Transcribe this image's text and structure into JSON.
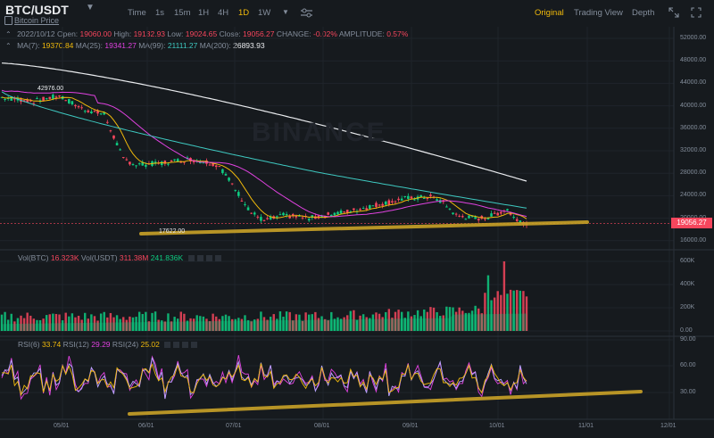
{
  "header": {
    "symbol": "BTC/USDT",
    "subtitle": "Bitcoin Price",
    "intervals": [
      "Time",
      "1s",
      "15m",
      "1H",
      "4H",
      "1D",
      "1W"
    ],
    "active_interval": "1D",
    "views": [
      "Original",
      "Trading View",
      "Depth"
    ],
    "active_view": "Original"
  },
  "ohlc": {
    "date": "2022/10/12",
    "open_label": "Open:",
    "open": "19060.00",
    "high_label": "High:",
    "high": "19132.93",
    "low_label": "Low:",
    "low": "19024.65",
    "close_label": "Close:",
    "close": "19056.27",
    "change_label": "CHANGE:",
    "change": "-0.02%",
    "amplitude_label": "AMPLITUDE:",
    "amplitude": "0.57%"
  },
  "ma": {
    "ma7_label": "MA(7):",
    "ma7": "19370.84",
    "ma25_label": "MA(25):",
    "ma25": "19341.27",
    "ma99_label": "MA(99):",
    "ma99": "21111.27",
    "ma200_label": "MA(200):",
    "ma200": "26893.93"
  },
  "volume": {
    "btc_label": "Vol(BTC)",
    "btc": "16.323K",
    "usdt_label": "Vol(USDT)",
    "usdt": "311.38M",
    "usdt_ma": "241.836K"
  },
  "rsi": {
    "r6_label": "RSI(6)",
    "r6": "33.74",
    "r12_label": "RSI(12)",
    "r12": "29.29",
    "r24_label": "RSI(24)",
    "r24": "25.02"
  },
  "price_axis": [
    "52000.00",
    "48000.00",
    "44000.00",
    "40000.00",
    "36000.00",
    "32000.00",
    "28000.00",
    "24000.00",
    "20000.00",
    "16000.00"
  ],
  "current_price": "19056.27",
  "vol_axis": [
    "600K",
    "400K",
    "200K",
    "0.00"
  ],
  "rsi_axis": [
    "90.00",
    "60.00",
    "30.00"
  ],
  "time_axis": [
    "05/01",
    "06/01",
    "07/01",
    "08/01",
    "09/01",
    "10/01",
    "11/01",
    "12/01"
  ],
  "annotations": {
    "high_marker": "42976.00",
    "low_marker": "17622.00"
  },
  "watermark": "BINANCE",
  "colors": {
    "bg": "#161a1e",
    "up": "#0ecb81",
    "down": "#f6465d",
    "accent": "#f0b90b",
    "ma7": "#f0b90b",
    "ma25": "#e042e0",
    "ma99": "#3ec8c0",
    "ma200": "#eaecef",
    "trendline": "#c9a227"
  }
}
